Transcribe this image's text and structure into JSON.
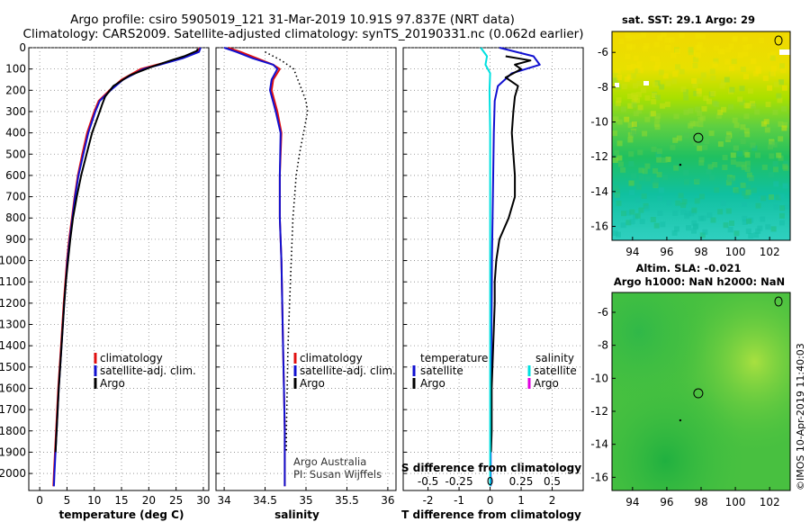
{
  "header": {
    "line1": "Argo profile: csiro 5905019_121 31-Mar-2019 10.91S 97.837E (NRT data)",
    "line2": "Climatology: CARS2009. Satellite-adjusted climatology: synTS_20190331.nc (0.062d earlier)"
  },
  "colors": {
    "climatology": "#e01010",
    "satellite": "#1010d0",
    "argo": "#000000",
    "sal_satellite": "#00e0e0",
    "sal_argo": "#e000e0"
  },
  "chart_data": [
    {
      "type": "line",
      "name": "temperature",
      "xlabel": "temperature (deg C)",
      "xlim": [
        -2,
        31
      ],
      "xticks": [
        0,
        5,
        10,
        15,
        20,
        25,
        30
      ],
      "ylim": [
        0,
        2080
      ],
      "yticks": [
        0,
        100,
        200,
        300,
        400,
        500,
        600,
        700,
        800,
        900,
        1000,
        1100,
        1200,
        1300,
        1400,
        1500,
        1600,
        1700,
        1800,
        1900,
        2000
      ],
      "legend": [
        "climatology",
        "satellite-adj. clim.",
        "Argo"
      ],
      "series": [
        {
          "name": "climatology",
          "color": "#e01010",
          "depth": [
            0,
            20,
            50,
            80,
            100,
            150,
            200,
            250,
            300,
            400,
            500,
            600,
            700,
            800,
            900,
            1000,
            1200,
            1400,
            1600,
            1800,
            2000,
            2060
          ],
          "values": [
            29.3,
            29.0,
            26.0,
            21.5,
            18.5,
            15.0,
            12.8,
            10.8,
            10.0,
            8.7,
            7.8,
            7.0,
            6.4,
            5.9,
            5.4,
            5.0,
            4.4,
            3.9,
            3.4,
            3.0,
            2.6,
            2.5
          ]
        },
        {
          "name": "satellite-adj. clim.",
          "color": "#1010d0",
          "depth": [
            0,
            20,
            50,
            80,
            100,
            150,
            200,
            250,
            300,
            400,
            500,
            600,
            700,
            800,
            900,
            1000,
            1200,
            1400,
            1600,
            1800,
            2000,
            2060
          ],
          "values": [
            29.5,
            29.2,
            26.2,
            22.0,
            19.0,
            15.3,
            13.0,
            11.0,
            10.2,
            8.9,
            8.0,
            7.1,
            6.5,
            6.0,
            5.5,
            5.1,
            4.5,
            4.0,
            3.5,
            3.1,
            2.7,
            2.6
          ]
        },
        {
          "name": "Argo",
          "color": "#000000",
          "depth": [
            5,
            15,
            40,
            60,
            90,
            130,
            180,
            230,
            270,
            300,
            400,
            500,
            600,
            700,
            800,
            900,
            1000,
            1100,
            1200,
            1400,
            1600,
            1800,
            1900
          ],
          "values": [
            29.0,
            28.8,
            26.5,
            24.0,
            20.5,
            16.5,
            13.5,
            12.0,
            11.4,
            11.0,
            9.6,
            8.6,
            7.6,
            6.8,
            6.1,
            5.6,
            5.2,
            4.8,
            4.5,
            4.0,
            3.5,
            3.1,
            2.9
          ]
        }
      ]
    },
    {
      "type": "line",
      "name": "salinity",
      "xlabel": "salinity",
      "xlim": [
        33.9,
        36.1
      ],
      "xticks": [
        34,
        34.5,
        35,
        35.5,
        36
      ],
      "legend": [
        "climatology",
        "satellite-adj. clim.",
        "Argo"
      ],
      "annotations": [
        "Argo Australia",
        "PI: Susan Wijffels"
      ],
      "series": [
        {
          "name": "climatology",
          "color": "#e01010",
          "depth": [
            0,
            20,
            50,
            80,
            100,
            150,
            200,
            300,
            400,
            600,
            800,
            1000,
            1200,
            1400,
            1600,
            1800,
            2000,
            2060
          ],
          "values": [
            34.05,
            34.2,
            34.4,
            34.6,
            34.68,
            34.6,
            34.58,
            34.65,
            34.7,
            34.68,
            34.68,
            34.7,
            34.71,
            34.72,
            34.73,
            34.74,
            34.74,
            34.74
          ]
        },
        {
          "name": "satellite-adj. clim.",
          "color": "#1010d0",
          "depth": [
            0,
            20,
            50,
            80,
            100,
            150,
            200,
            300,
            400,
            600,
            800,
            1000,
            1200,
            1400,
            1600,
            1800,
            2000,
            2060
          ],
          "values": [
            34.0,
            34.15,
            34.35,
            34.6,
            34.65,
            34.58,
            34.56,
            34.63,
            34.69,
            34.68,
            34.68,
            34.7,
            34.71,
            34.72,
            34.73,
            34.74,
            34.74,
            34.74
          ]
        },
        {
          "name": "Argo",
          "color": "#000000",
          "style": "dotted",
          "depth": [
            20,
            60,
            100,
            150,
            200,
            250,
            300,
            400,
            500,
            600,
            800,
            1000,
            1200,
            1400,
            1600,
            1800,
            1900
          ],
          "values": [
            34.5,
            34.7,
            34.85,
            34.9,
            34.95,
            35.0,
            35.02,
            34.97,
            34.92,
            34.88,
            34.84,
            34.82,
            34.8,
            34.78,
            34.77,
            34.76,
            34.76
          ]
        }
      ]
    },
    {
      "type": "line",
      "name": "difference",
      "xlabel": "T difference from climatology",
      "x2label": "S difference from climatology",
      "xlim": [
        -2.8,
        3.0
      ],
      "xticks": [
        -2,
        -1,
        0,
        1,
        2
      ],
      "x2ticks": [
        "-0.5",
        "-0.25",
        "0",
        "0.25",
        "0.5"
      ],
      "legend_temperature_title": "temperature",
      "legend_salinity_title": "salinity",
      "legend_temperature": [
        "satellite",
        "Argo"
      ],
      "legend_salinity": [
        "satellite",
        "Argo"
      ],
      "series": [
        {
          "name": "T satellite",
          "color": "#1010d0",
          "depth": [
            0,
            40,
            80,
            120,
            180,
            250,
            400,
            600,
            800,
            1000,
            1200,
            1400,
            1600,
            1800,
            2000,
            2060
          ],
          "values": [
            0.3,
            1.4,
            1.6,
            0.7,
            0.25,
            0.15,
            0.12,
            0.1,
            0.08,
            0.06,
            0.05,
            0.04,
            0.03,
            0.02,
            0.02,
            0.02
          ]
        },
        {
          "name": "T Argo",
          "color": "#000000",
          "depth": [
            40,
            60,
            80,
            100,
            140,
            180,
            230,
            300,
            400,
            500,
            600,
            700,
            800,
            900,
            1000,
            1100,
            1200,
            1400,
            1600,
            1800,
            1900
          ],
          "values": [
            0.5,
            1.3,
            0.8,
            1.0,
            0.5,
            0.9,
            0.8,
            0.75,
            0.7,
            0.75,
            0.8,
            0.8,
            0.6,
            0.3,
            0.2,
            0.15,
            0.15,
            0.1,
            0.05,
            0.05,
            0.03
          ]
        },
        {
          "name": "S satellite",
          "color": "#00e0e0",
          "depth": [
            0,
            40,
            80,
            120,
            200,
            400,
            800,
            1200,
            1600,
            2060
          ],
          "values": [
            -0.3,
            -0.1,
            -0.15,
            0.0,
            -0.02,
            0.0,
            0.0,
            0.0,
            0.0,
            0.0
          ]
        }
      ]
    },
    {
      "type": "heatmap",
      "name": "sst-map",
      "title": "sat. SST: 29.1 Argo: 29",
      "xlim": [
        92.8,
        103.2
      ],
      "ylim": [
        -16.8,
        -4.8
      ],
      "xticks": [
        94,
        96,
        98,
        100,
        102
      ],
      "yticks": [
        -6,
        -8,
        -10,
        -12,
        -14,
        -16
      ],
      "argo_position": {
        "lon": 97.837,
        "lat": -10.91
      }
    },
    {
      "type": "heatmap",
      "name": "sla-map",
      "title1": "Altim. SLA: -0.021",
      "title2": "Argo h1000: NaN h2000: NaN",
      "xlim": [
        92.8,
        103.2
      ],
      "ylim": [
        -16.8,
        -4.8
      ],
      "xticks": [
        94,
        96,
        98,
        100,
        102
      ],
      "yticks": [
        -6,
        -8,
        -10,
        -12,
        -14,
        -16
      ],
      "argo_position": {
        "lon": 97.837,
        "lat": -10.91
      }
    }
  ],
  "credit": "©IMOS 10-Apr-2019 11:40:03"
}
